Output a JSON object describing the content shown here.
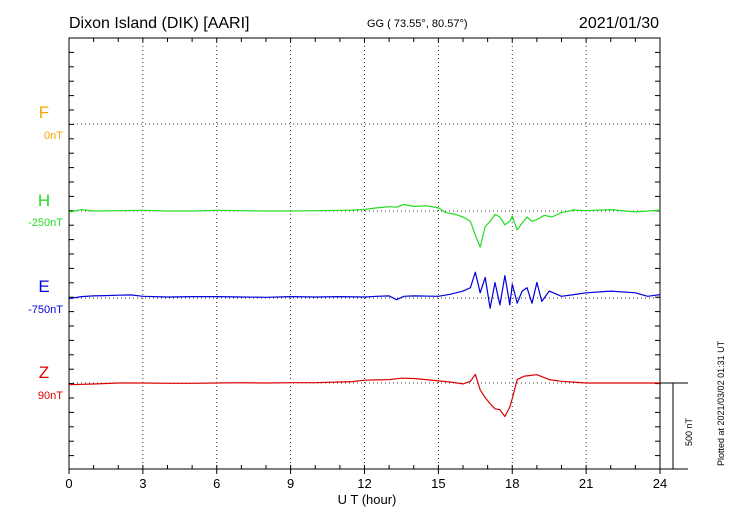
{
  "header": {
    "station": "Dixon Island (DIK)  [AARI]",
    "coords": "GG ( 73.55°,  80.57°)",
    "date": "2021/01/30"
  },
  "footer": {
    "xlabel": "U T (hour)",
    "plotted": "Plotted at 2021/03/02 01:31  UT",
    "scale_label": "500 nT"
  },
  "chart_data": {
    "type": "line",
    "title": "Dixon Island (DIK)  [AARI]",
    "xlabel": "U T (hour)",
    "ylabel": "",
    "xlim": [
      0,
      24
    ],
    "x_ticks": [
      0,
      3,
      6,
      9,
      12,
      15,
      18,
      21,
      24
    ],
    "grid": true,
    "scale_bar_nT": 500,
    "series": [
      {
        "name": "F",
        "baseline_label": "0nT",
        "color": "#f5a400",
        "x": [],
        "values": []
      },
      {
        "name": "H",
        "baseline_label": "-250nT",
        "color": "#22dd22",
        "x": [
          0,
          0.5,
          1,
          2,
          3,
          4,
          5,
          6,
          7,
          8,
          9,
          10,
          11,
          11.5,
          12,
          12.5,
          13,
          13.3,
          13.6,
          14,
          14.5,
          15,
          15.3,
          15.7,
          16,
          16.3,
          16.5,
          16.7,
          16.9,
          17.1,
          17.3,
          17.5,
          17.7,
          17.9,
          18,
          18.2,
          18.4,
          18.6,
          18.8,
          19,
          19.3,
          19.6,
          20,
          20.5,
          21,
          22,
          23,
          24
        ],
        "values": [
          -7,
          8,
          0,
          2,
          4,
          0,
          0,
          4,
          2,
          0,
          0,
          2,
          4,
          5,
          10,
          18,
          25,
          22,
          38,
          27,
          30,
          18,
          -10,
          -20,
          -35,
          -60,
          -140,
          -210,
          -90,
          -60,
          -20,
          -35,
          -80,
          -60,
          -30,
          -110,
          -70,
          -35,
          -60,
          -50,
          -25,
          -35,
          -10,
          6,
          2,
          8,
          -5,
          5
        ]
      },
      {
        "name": "E",
        "baseline_label": "-750nT",
        "color": "#0000dd",
        "x": [
          0,
          0.5,
          1,
          1.5,
          2,
          2.5,
          3,
          4,
          5,
          6,
          7,
          8,
          9,
          10,
          11,
          12,
          12.5,
          13,
          13.3,
          13.6,
          14,
          15,
          15.5,
          16,
          16.3,
          16.5,
          16.7,
          16.9,
          17.1,
          17.3,
          17.5,
          17.7,
          17.9,
          18,
          18.2,
          18.4,
          18.6,
          18.8,
          19,
          19.2,
          19.5,
          20,
          20.5,
          21,
          22,
          23,
          23.5,
          24
        ],
        "values": [
          -4,
          8,
          12,
          14,
          16,
          18,
          10,
          6,
          8,
          8,
          6,
          4,
          8,
          6,
          8,
          6,
          10,
          12,
          -10,
          10,
          12,
          10,
          22,
          40,
          60,
          150,
          30,
          120,
          -60,
          90,
          -40,
          130,
          -40,
          80,
          -30,
          40,
          60,
          -30,
          90,
          -20,
          40,
          10,
          20,
          30,
          40,
          30,
          10,
          20
        ]
      },
      {
        "name": "Z",
        "baseline_label": "90nT",
        "color": "#dd0000",
        "x": [
          0,
          1,
          2,
          3,
          4,
          5,
          6,
          7,
          8,
          9,
          10,
          11,
          11.5,
          12,
          12.5,
          13,
          13.5,
          14,
          14.5,
          15,
          15.5,
          16,
          16.3,
          16.5,
          16.7,
          16.9,
          17.1,
          17.3,
          17.5,
          17.7,
          17.9,
          18,
          18.2,
          18.5,
          19,
          19.5,
          20,
          20.5,
          21,
          22,
          23,
          24
        ],
        "values": [
          -10,
          -6,
          0,
          0,
          -2,
          -2,
          0,
          2,
          0,
          2,
          2,
          6,
          8,
          16,
          18,
          20,
          28,
          26,
          20,
          12,
          5,
          -5,
          10,
          50,
          -40,
          -85,
          -120,
          -150,
          -155,
          -195,
          -140,
          -90,
          20,
          40,
          48,
          20,
          10,
          5,
          0,
          0,
          0,
          0
        ]
      }
    ]
  }
}
